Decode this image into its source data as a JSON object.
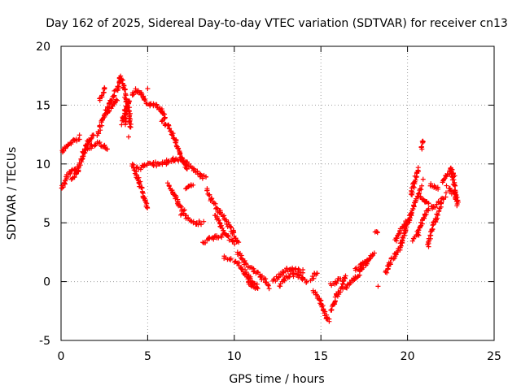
{
  "chart_data": {
    "type": "scatter",
    "title": "Day 162 of 2025, Sidereal Day-to-day VTEC variation (SDTVAR) for receiver cn13",
    "xlabel": "GPS time / hours",
    "ylabel": "SDTVAR / TECUs",
    "xlim": [
      0,
      25
    ],
    "ylim": [
      -5,
      20
    ],
    "xticks": [
      0,
      5,
      10,
      15,
      20,
      25
    ],
    "yticks": [
      -5,
      0,
      5,
      10,
      15,
      20
    ],
    "grid": true,
    "marker": "+",
    "series": [
      {
        "name": "SDTVAR",
        "color": "#ff0000",
        "segments": [
          [
            [
              0.0,
              7.8
            ],
            [
              0.3,
              8.8
            ],
            [
              0.6,
              9.5
            ],
            [
              1.0,
              9.4
            ]
          ],
          [
            [
              0.05,
              11.0
            ],
            [
              0.4,
              11.5
            ],
            [
              0.8,
              12.0
            ],
            [
              1.1,
              12.3
            ]
          ],
          [
            [
              0.6,
              8.6
            ],
            [
              0.9,
              9.2
            ],
            [
              1.2,
              10.5
            ],
            [
              1.5,
              11.8
            ],
            [
              1.9,
              12.5
            ]
          ],
          [
            [
              1.3,
              11.0
            ],
            [
              1.7,
              11.5
            ],
            [
              2.1,
              11.8
            ],
            [
              2.5,
              11.5
            ],
            [
              2.7,
              11.2
            ]
          ],
          [
            [
              2.1,
              12.5
            ],
            [
              2.4,
              13.8
            ],
            [
              2.7,
              14.5
            ],
            [
              3.0,
              15.0
            ],
            [
              3.2,
              15.5
            ]
          ],
          [
            [
              2.2,
              15.5
            ],
            [
              2.4,
              16.0
            ],
            [
              2.5,
              16.5
            ]
          ],
          [
            [
              2.6,
              14.5
            ],
            [
              2.9,
              15.5
            ],
            [
              3.3,
              16.5
            ],
            [
              3.4,
              17.4
            ],
            [
              3.6,
              16.8
            ],
            [
              3.8,
              15.0
            ],
            [
              3.7,
              13.5
            ]
          ],
          [
            [
              3.5,
              13.5
            ],
            [
              3.7,
              14.5
            ],
            [
              3.9,
              15.3
            ],
            [
              4.0,
              13.0
            ]
          ],
          [
            [
              4.1,
              15.8
            ],
            [
              4.3,
              16.3
            ],
            [
              4.6,
              16.0
            ],
            [
              4.8,
              15.5
            ],
            [
              5.1,
              15.1
            ],
            [
              5.5,
              15.0
            ],
            [
              5.8,
              14.6
            ],
            [
              6.0,
              13.8
            ]
          ],
          [
            [
              4.1,
              10.0
            ],
            [
              4.5,
              8.5
            ],
            [
              4.8,
              7.2
            ],
            [
              5.0,
              6.2
            ]
          ],
          [
            [
              4.3,
              9.5
            ],
            [
              4.8,
              9.8
            ],
            [
              5.3,
              10.0
            ],
            [
              5.8,
              10.0
            ],
            [
              6.2,
              10.2
            ],
            [
              6.6,
              10.4
            ],
            [
              7.0,
              10.3
            ],
            [
              7.3,
              10.1
            ]
          ],
          [
            [
              5.8,
              13.7
            ],
            [
              6.2,
              13.2
            ],
            [
              6.6,
              12.0
            ],
            [
              6.9,
              10.6
            ],
            [
              7.3,
              9.6
            ]
          ],
          [
            [
              7.3,
              10.0
            ],
            [
              7.7,
              9.5
            ],
            [
              8.1,
              9.0
            ],
            [
              8.4,
              8.8
            ]
          ],
          [
            [
              7.2,
              7.8
            ],
            [
              7.6,
              8.3
            ]
          ],
          [
            [
              6.2,
              8.3
            ],
            [
              6.5,
              7.5
            ],
            [
              6.8,
              6.6
            ],
            [
              7.1,
              6.0
            ]
          ],
          [
            [
              6.9,
              5.8
            ],
            [
              7.3,
              5.4
            ],
            [
              7.8,
              5.0
            ],
            [
              8.2,
              5.0
            ]
          ],
          [
            [
              8.4,
              7.8
            ],
            [
              8.7,
              6.9
            ],
            [
              9.1,
              6.0
            ],
            [
              9.5,
              5.2
            ],
            [
              9.9,
              4.3
            ],
            [
              10.2,
              3.2
            ]
          ],
          [
            [
              8.9,
              5.6
            ],
            [
              9.2,
              4.8
            ],
            [
              9.6,
              3.9
            ],
            [
              10.0,
              3.3
            ]
          ],
          [
            [
              8.2,
              3.3
            ],
            [
              8.6,
              3.6
            ],
            [
              9.0,
              3.8
            ],
            [
              9.4,
              4.0
            ]
          ],
          [
            [
              9.4,
              2.1
            ],
            [
              9.8,
              1.8
            ]
          ],
          [
            [
              10.0,
              1.8
            ],
            [
              10.4,
              1.2
            ],
            [
              10.8,
              0.5
            ],
            [
              11.1,
              -0.2
            ],
            [
              11.4,
              -0.5
            ]
          ],
          [
            [
              10.2,
              2.5
            ],
            [
              10.6,
              1.6
            ],
            [
              11.1,
              1.0
            ],
            [
              11.5,
              0.5
            ],
            [
              11.8,
              0.0
            ],
            [
              12.0,
              -0.5
            ]
          ],
          [
            [
              10.6,
              0.6
            ],
            [
              11.0,
              -0.4
            ],
            [
              11.3,
              -0.6
            ]
          ],
          [
            [
              12.2,
              0.0
            ],
            [
              12.6,
              0.5
            ],
            [
              13.0,
              1.0
            ],
            [
              13.5,
              1.0
            ],
            [
              14.0,
              0.9
            ]
          ],
          [
            [
              12.6,
              -0.3
            ],
            [
              13.0,
              0.3
            ],
            [
              13.4,
              0.6
            ],
            [
              13.8,
              0.4
            ],
            [
              14.2,
              0.0
            ]
          ],
          [
            [
              14.4,
              0.2
            ],
            [
              14.8,
              0.8
            ]
          ],
          [
            [
              14.6,
              -0.8
            ],
            [
              14.9,
              -1.5
            ],
            [
              15.1,
              -2.2
            ],
            [
              15.3,
              -3.0
            ],
            [
              15.5,
              -3.3
            ]
          ],
          [
            [
              15.6,
              -2.5
            ],
            [
              15.9,
              -1.2
            ],
            [
              16.2,
              -0.6
            ],
            [
              16.4,
              0.5
            ]
          ],
          [
            [
              15.6,
              -0.2
            ],
            [
              15.9,
              0.0
            ],
            [
              16.1,
              0.2
            ]
          ],
          [
            [
              16.4,
              -0.6
            ],
            [
              16.8,
              0.0
            ],
            [
              17.2,
              0.7
            ],
            [
              17.5,
              1.4
            ],
            [
              17.8,
              1.8
            ]
          ],
          [
            [
              17.0,
              1.0
            ],
            [
              17.4,
              1.5
            ],
            [
              17.8,
              2.0
            ],
            [
              18.1,
              2.4
            ]
          ],
          [
            [
              18.1,
              4.2
            ],
            [
              18.3,
              4.3
            ]
          ],
          [
            [
              18.7,
              0.7
            ],
            [
              19.0,
              1.6
            ],
            [
              19.3,
              2.3
            ],
            [
              19.6,
              3.0
            ],
            [
              19.9,
              4.5
            ],
            [
              20.2,
              5.7
            ],
            [
              20.5,
              7.0
            ],
            [
              20.8,
              8.0
            ]
          ],
          [
            [
              19.3,
              3.5
            ],
            [
              19.6,
              4.3
            ],
            [
              19.9,
              5.0
            ],
            [
              20.2,
              5.5
            ]
          ],
          [
            [
              20.2,
              7.3
            ],
            [
              20.4,
              8.5
            ],
            [
              20.6,
              9.6
            ]
          ],
          [
            [
              20.3,
              3.6
            ],
            [
              20.6,
              4.1
            ],
            [
              20.9,
              5.3
            ],
            [
              21.2,
              6.2
            ]
          ],
          [
            [
              20.8,
              11.3
            ],
            [
              20.9,
              12.0
            ]
          ],
          [
            [
              21.2,
              3.0
            ],
            [
              21.4,
              4.5
            ],
            [
              21.6,
              5.2
            ],
            [
              21.9,
              6.3
            ]
          ],
          [
            [
              20.7,
              7.2
            ],
            [
              21.1,
              6.7
            ],
            [
              21.5,
              6.3
            ],
            [
              21.9,
              6.8
            ],
            [
              22.2,
              7.4
            ]
          ],
          [
            [
              21.3,
              8.2
            ],
            [
              21.8,
              7.9
            ]
          ],
          [
            [
              22.0,
              8.5
            ],
            [
              22.3,
              9.0
            ],
            [
              22.5,
              9.6
            ],
            [
              22.7,
              9.1
            ]
          ],
          [
            [
              22.3,
              8.0
            ],
            [
              22.6,
              7.6
            ],
            [
              22.9,
              7.0
            ]
          ],
          [
            [
              22.5,
              9.7
            ],
            [
              22.9,
              6.5
            ]
          ]
        ],
        "isolated_points": [
          [
            5.0,
            16.4
          ],
          [
            3.9,
            12.3
          ],
          [
            18.3,
            -0.4
          ],
          [
            20.9,
            8.7
          ]
        ]
      }
    ]
  }
}
